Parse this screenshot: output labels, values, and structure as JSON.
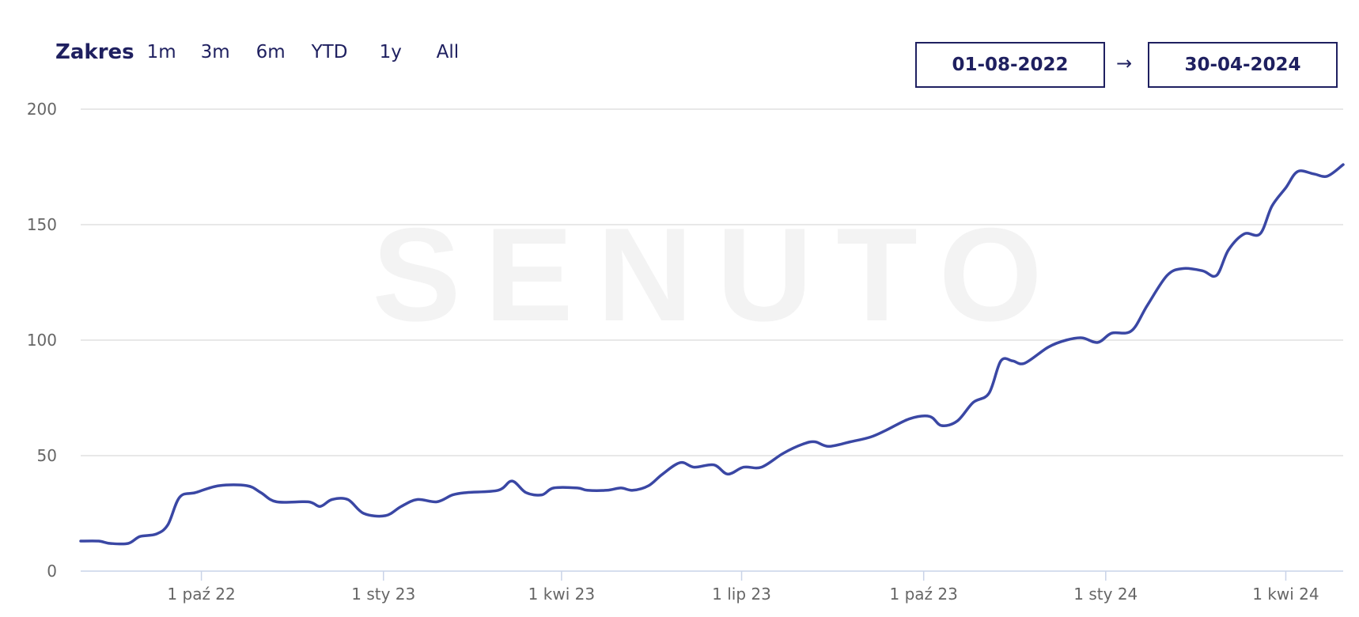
{
  "toolbar": {
    "range_label": "Zakres",
    "range_buttons": [
      "1m",
      "3m",
      "6m",
      "YTD",
      "1y",
      "All"
    ]
  },
  "date_range": {
    "from": "01-08-2022",
    "separator": "→",
    "to": "30-04-2024"
  },
  "watermark": "SENUTO",
  "colors": {
    "line": "#3a47a4",
    "grid": "#e0e0e0",
    "axis_text": "#666666",
    "accent": "#1f2060"
  },
  "chart_data": {
    "type": "line",
    "title": "",
    "xlabel": "",
    "ylabel": "",
    "ylim": [
      0,
      200
    ],
    "yticks": [
      0,
      50,
      100,
      150,
      200
    ],
    "xlim": [
      "2022-08-01",
      "2024-04-30"
    ],
    "xticks": [
      {
        "date": "2022-10-01",
        "label": "1 paź 22"
      },
      {
        "date": "2023-01-01",
        "label": "1 sty 23"
      },
      {
        "date": "2023-04-01",
        "label": "1 kwi 23"
      },
      {
        "date": "2023-07-01",
        "label": "1 lip 23"
      },
      {
        "date": "2023-10-01",
        "label": "1 paź 23"
      },
      {
        "date": "2024-01-01",
        "label": "1 sty 24"
      },
      {
        "date": "2024-04-01",
        "label": "1 kwi 24"
      }
    ],
    "grid": true,
    "series": [
      {
        "points": [
          [
            "2022-08-01",
            13
          ],
          [
            "2022-08-10",
            13
          ],
          [
            "2022-08-16",
            12
          ],
          [
            "2022-08-25",
            12
          ],
          [
            "2022-08-31",
            15
          ],
          [
            "2022-09-08",
            16
          ],
          [
            "2022-09-14",
            20
          ],
          [
            "2022-09-20",
            32
          ],
          [
            "2022-09-28",
            34
          ],
          [
            "2022-10-10",
            37
          ],
          [
            "2022-10-24",
            37
          ],
          [
            "2022-10-31",
            34
          ],
          [
            "2022-11-08",
            30
          ],
          [
            "2022-11-24",
            30
          ],
          [
            "2022-11-30",
            28
          ],
          [
            "2022-12-06",
            31
          ],
          [
            "2022-12-14",
            31
          ],
          [
            "2022-12-22",
            25
          ],
          [
            "2023-01-02",
            24
          ],
          [
            "2023-01-10",
            28
          ],
          [
            "2023-01-18",
            31
          ],
          [
            "2023-01-28",
            30
          ],
          [
            "2023-02-05",
            33
          ],
          [
            "2023-02-12",
            34
          ],
          [
            "2023-02-28",
            35
          ],
          [
            "2023-03-07",
            39
          ],
          [
            "2023-03-14",
            34
          ],
          [
            "2023-03-22",
            33
          ],
          [
            "2023-03-28",
            36
          ],
          [
            "2023-04-09",
            36
          ],
          [
            "2023-04-14",
            35
          ],
          [
            "2023-04-24",
            35
          ],
          [
            "2023-05-01",
            36
          ],
          [
            "2023-05-07",
            35
          ],
          [
            "2023-05-15",
            37
          ],
          [
            "2023-05-22",
            42
          ],
          [
            "2023-05-31",
            47
          ],
          [
            "2023-06-07",
            45
          ],
          [
            "2023-06-17",
            46
          ],
          [
            "2023-06-24",
            42
          ],
          [
            "2023-07-02",
            45
          ],
          [
            "2023-07-11",
            45
          ],
          [
            "2023-07-22",
            51
          ],
          [
            "2023-08-01",
            55
          ],
          [
            "2023-08-07",
            56
          ],
          [
            "2023-08-14",
            54
          ],
          [
            "2023-08-25",
            56
          ],
          [
            "2023-09-04",
            58
          ],
          [
            "2023-09-12",
            61
          ],
          [
            "2023-09-24",
            66
          ],
          [
            "2023-10-04",
            67
          ],
          [
            "2023-10-10",
            63
          ],
          [
            "2023-10-18",
            65
          ],
          [
            "2023-10-26",
            73
          ],
          [
            "2023-11-03",
            77
          ],
          [
            "2023-11-09",
            91
          ],
          [
            "2023-11-15",
            91
          ],
          [
            "2023-11-21",
            90
          ],
          [
            "2023-12-03",
            97
          ],
          [
            "2023-12-12",
            100
          ],
          [
            "2023-12-20",
            101
          ],
          [
            "2023-12-28",
            99
          ],
          [
            "2024-01-04",
            103
          ],
          [
            "2024-01-14",
            104
          ],
          [
            "2024-01-22",
            115
          ],
          [
            "2024-02-01",
            128
          ],
          [
            "2024-02-09",
            131
          ],
          [
            "2024-02-19",
            130
          ],
          [
            "2024-02-26",
            128
          ],
          [
            "2024-03-03",
            139
          ],
          [
            "2024-03-11",
            146
          ],
          [
            "2024-03-19",
            146
          ],
          [
            "2024-03-25",
            158
          ],
          [
            "2024-04-01",
            166
          ],
          [
            "2024-04-07",
            173
          ],
          [
            "2024-04-15",
            172
          ],
          [
            "2024-04-22",
            171
          ],
          [
            "2024-04-30",
            176
          ]
        ]
      }
    ]
  }
}
